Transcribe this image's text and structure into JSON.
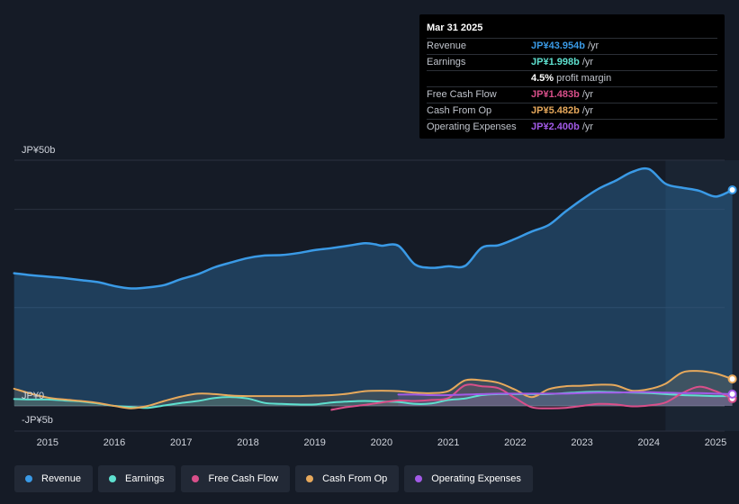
{
  "chart_data": {
    "type": "area",
    "title": "",
    "ylabel_top": "JP¥50b",
    "ylabel_zero": "JP¥0",
    "ylabel_bottom": "-JP¥5b",
    "ylim": [
      -5,
      50
    ],
    "x_ticks": [
      "2015",
      "2016",
      "2017",
      "2018",
      "2019",
      "2020",
      "2021",
      "2022",
      "2023",
      "2024",
      "2025"
    ],
    "xlim": [
      2014.45,
      2025.35
    ],
    "forecast_start": 2024.25,
    "series": [
      {
        "name": "Revenue",
        "key": "revenue",
        "color": "#3a9ae6",
        "points": [
          [
            2014.5,
            27
          ],
          [
            2014.75,
            26.6
          ],
          [
            2015.0,
            26.3
          ],
          [
            2015.25,
            26
          ],
          [
            2015.5,
            25.6
          ],
          [
            2015.75,
            25.2
          ],
          [
            2016.0,
            24.4
          ],
          [
            2016.25,
            23.9
          ],
          [
            2016.5,
            24.1
          ],
          [
            2016.75,
            24.6
          ],
          [
            2017.0,
            25.8
          ],
          [
            2017.25,
            26.8
          ],
          [
            2017.5,
            28.2
          ],
          [
            2017.75,
            29.2
          ],
          [
            2018.0,
            30.1
          ],
          [
            2018.25,
            30.6
          ],
          [
            2018.5,
            30.7
          ],
          [
            2018.75,
            31.1
          ],
          [
            2019.0,
            31.7
          ],
          [
            2019.25,
            32.1
          ],
          [
            2019.5,
            32.6
          ],
          [
            2019.75,
            33.1
          ],
          [
            2019.9,
            32.9
          ],
          [
            2020.0,
            32.6
          ],
          [
            2020.25,
            32.6
          ],
          [
            2020.5,
            28.8
          ],
          [
            2020.75,
            28.1
          ],
          [
            2021.0,
            28.4
          ],
          [
            2021.25,
            28.5
          ],
          [
            2021.5,
            32.2
          ],
          [
            2021.75,
            32.7
          ],
          [
            2022.0,
            34.0
          ],
          [
            2022.25,
            35.5
          ],
          [
            2022.5,
            36.8
          ],
          [
            2022.75,
            39.5
          ],
          [
            2023.0,
            42.0
          ],
          [
            2023.25,
            44.2
          ],
          [
            2023.5,
            45.8
          ],
          [
            2023.75,
            47.6
          ],
          [
            2024.0,
            48.2
          ],
          [
            2024.25,
            45.2
          ],
          [
            2024.5,
            44.4
          ],
          [
            2024.75,
            43.8
          ],
          [
            2025.0,
            42.6
          ],
          [
            2025.25,
            43.954
          ]
        ]
      },
      {
        "name": "Earnings",
        "key": "earnings",
        "color": "#5ee0cf",
        "points": [
          [
            2014.5,
            1.4
          ],
          [
            2014.75,
            1.3
          ],
          [
            2015.0,
            1.3
          ],
          [
            2015.25,
            1.1
          ],
          [
            2015.5,
            0.9
          ],
          [
            2015.75,
            0.5
          ],
          [
            2016.0,
            0.0
          ],
          [
            2016.25,
            -0.2
          ],
          [
            2016.5,
            -0.4
          ],
          [
            2016.75,
            0.1
          ],
          [
            2017.0,
            0.6
          ],
          [
            2017.25,
            1.0
          ],
          [
            2017.5,
            1.6
          ],
          [
            2017.75,
            1.8
          ],
          [
            2018.0,
            1.5
          ],
          [
            2018.25,
            0.6
          ],
          [
            2018.5,
            0.4
          ],
          [
            2018.75,
            0.3
          ],
          [
            2019.0,
            0.3
          ],
          [
            2019.25,
            0.7
          ],
          [
            2019.5,
            0.9
          ],
          [
            2019.75,
            1.0
          ],
          [
            2020.0,
            0.9
          ],
          [
            2020.25,
            0.8
          ],
          [
            2020.5,
            0.4
          ],
          [
            2020.75,
            0.5
          ],
          [
            2021.0,
            1.2
          ],
          [
            2021.25,
            1.5
          ],
          [
            2021.5,
            2.2
          ],
          [
            2021.75,
            2.4
          ],
          [
            2022.0,
            2.4
          ],
          [
            2022.25,
            2.4
          ],
          [
            2022.5,
            2.4
          ],
          [
            2022.75,
            2.6
          ],
          [
            2023.0,
            2.8
          ],
          [
            2023.25,
            2.9
          ],
          [
            2023.5,
            2.8
          ],
          [
            2023.75,
            2.7
          ],
          [
            2024.0,
            2.6
          ],
          [
            2024.25,
            2.4
          ],
          [
            2024.5,
            2.2
          ],
          [
            2024.75,
            2.1
          ],
          [
            2025.0,
            2.0
          ],
          [
            2025.25,
            1.998
          ]
        ]
      },
      {
        "name": "Free Cash Flow",
        "key": "fcf",
        "color": "#d94f8a",
        "points": [
          [
            2019.25,
            -0.8
          ],
          [
            2019.5,
            -0.2
          ],
          [
            2019.75,
            0.2
          ],
          [
            2020.0,
            0.7
          ],
          [
            2020.25,
            1.1
          ],
          [
            2020.5,
            1.0
          ],
          [
            2020.75,
            1.2
          ],
          [
            2021.0,
            1.6
          ],
          [
            2021.25,
            4.2
          ],
          [
            2021.5,
            4.0
          ],
          [
            2021.75,
            3.6
          ],
          [
            2022.0,
            1.6
          ],
          [
            2022.25,
            -0.3
          ],
          [
            2022.5,
            -0.5
          ],
          [
            2022.75,
            -0.4
          ],
          [
            2023.0,
            0.0
          ],
          [
            2023.25,
            0.4
          ],
          [
            2023.5,
            0.3
          ],
          [
            2023.75,
            -0.1
          ],
          [
            2024.0,
            0.1
          ],
          [
            2024.25,
            0.7
          ],
          [
            2024.5,
            2.6
          ],
          [
            2024.75,
            3.9
          ],
          [
            2025.0,
            3.0
          ],
          [
            2025.25,
            1.483
          ]
        ]
      },
      {
        "name": "Cash From Op",
        "key": "cfo",
        "color": "#e7a95c",
        "points": [
          [
            2014.5,
            3.5
          ],
          [
            2014.75,
            2.5
          ],
          [
            2015.0,
            1.7
          ],
          [
            2015.25,
            1.3
          ],
          [
            2015.5,
            1.0
          ],
          [
            2015.75,
            0.6
          ],
          [
            2016.0,
            0.0
          ],
          [
            2016.25,
            -0.5
          ],
          [
            2016.5,
            0.0
          ],
          [
            2016.75,
            1.0
          ],
          [
            2017.0,
            1.9
          ],
          [
            2017.25,
            2.5
          ],
          [
            2017.5,
            2.4
          ],
          [
            2017.75,
            2.1
          ],
          [
            2018.0,
            2.0
          ],
          [
            2018.25,
            2.0
          ],
          [
            2018.5,
            2.0
          ],
          [
            2018.75,
            2.0
          ],
          [
            2019.0,
            2.1
          ],
          [
            2019.25,
            2.2
          ],
          [
            2019.5,
            2.5
          ],
          [
            2019.75,
            3.0
          ],
          [
            2020.0,
            3.1
          ],
          [
            2020.25,
            3.0
          ],
          [
            2020.5,
            2.7
          ],
          [
            2020.75,
            2.6
          ],
          [
            2021.0,
            3.0
          ],
          [
            2021.25,
            5.2
          ],
          [
            2021.5,
            5.2
          ],
          [
            2021.75,
            4.7
          ],
          [
            2022.0,
            3.3
          ],
          [
            2022.25,
            1.8
          ],
          [
            2022.5,
            3.4
          ],
          [
            2022.75,
            4.0
          ],
          [
            2023.0,
            4.1
          ],
          [
            2023.25,
            4.3
          ],
          [
            2023.5,
            4.2
          ],
          [
            2023.75,
            3.1
          ],
          [
            2024.0,
            3.4
          ],
          [
            2024.25,
            4.5
          ],
          [
            2024.5,
            6.8
          ],
          [
            2024.75,
            7.1
          ],
          [
            2025.0,
            6.6
          ],
          [
            2025.25,
            5.482
          ]
        ]
      },
      {
        "name": "Operating Expenses",
        "key": "opex",
        "color": "#a25ae7",
        "points": [
          [
            2020.25,
            2.3
          ],
          [
            2020.5,
            2.3
          ],
          [
            2020.75,
            2.2
          ],
          [
            2021.0,
            2.2
          ],
          [
            2021.25,
            2.3
          ],
          [
            2021.5,
            2.4
          ],
          [
            2021.75,
            2.5
          ],
          [
            2022.0,
            2.5
          ],
          [
            2022.25,
            2.5
          ],
          [
            2022.5,
            2.5
          ],
          [
            2022.75,
            2.5
          ],
          [
            2023.0,
            2.6
          ],
          [
            2023.25,
            2.7
          ],
          [
            2023.5,
            2.7
          ],
          [
            2023.75,
            2.8
          ],
          [
            2024.0,
            2.8
          ],
          [
            2024.25,
            2.7
          ],
          [
            2024.5,
            2.6
          ],
          [
            2024.75,
            2.6
          ],
          [
            2025.0,
            2.5
          ],
          [
            2025.25,
            2.4
          ]
        ]
      }
    ]
  },
  "tooltip": {
    "date": "Mar 31 2025",
    "rows": [
      {
        "label": "Revenue",
        "value": "JP¥43.954b",
        "unit": "/yr",
        "color": "#3a9ae6"
      },
      {
        "label": "Earnings",
        "value": "JP¥1.998b",
        "unit": "/yr",
        "color": "#5ee0cf"
      },
      {
        "label": "",
        "value": "4.5%",
        "unit": "profit margin",
        "color": "#ffffff"
      },
      {
        "label": "Free Cash Flow",
        "value": "JP¥1.483b",
        "unit": "/yr",
        "color": "#d94f8a"
      },
      {
        "label": "Cash From Op",
        "value": "JP¥5.482b",
        "unit": "/yr",
        "color": "#e7a95c"
      },
      {
        "label": "Operating Expenses",
        "value": "JP¥2.400b",
        "unit": "/yr",
        "color": "#a25ae7"
      }
    ]
  },
  "legend": [
    {
      "label": "Revenue",
      "color": "#3a9ae6"
    },
    {
      "label": "Earnings",
      "color": "#5ee0cf"
    },
    {
      "label": "Free Cash Flow",
      "color": "#d94f8a"
    },
    {
      "label": "Cash From Op",
      "color": "#e7a95c"
    },
    {
      "label": "Operating Expenses",
      "color": "#a25ae7"
    }
  ]
}
